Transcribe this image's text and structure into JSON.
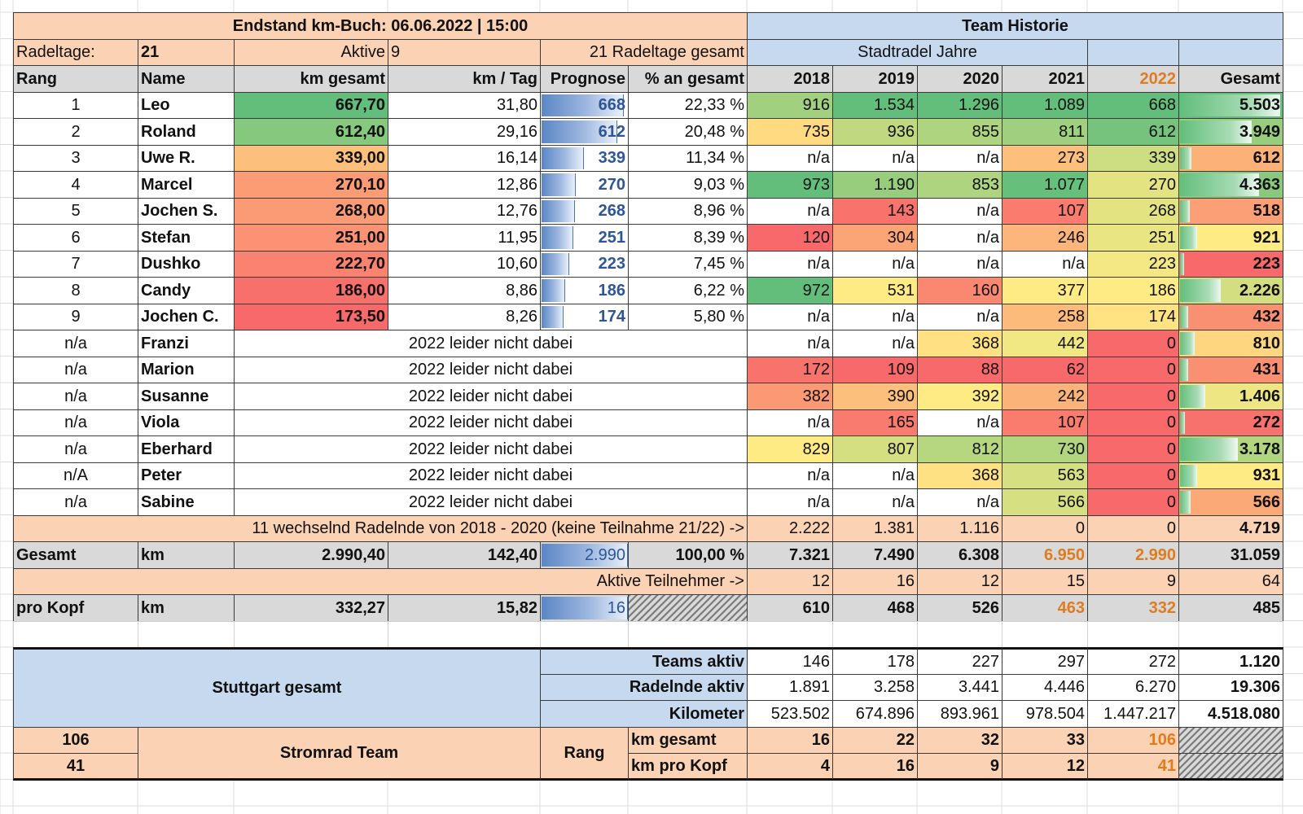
{
  "header": {
    "title": "Endstand km-Buch: 06.06.2022 | 15:00",
    "history_title": "Team Historie",
    "radeltage_label": "Radeltage:",
    "radeltage_value": "21",
    "aktive_label": "Aktive",
    "aktive_value": "9",
    "gesamt_tage": "21 Radeltage gesamt",
    "stadtradel_jahre": "Stadtradel Jahre"
  },
  "columns": [
    "Rang",
    "Name",
    "km gesamt",
    "km / Tag",
    "Prognose",
    "% an gesamt",
    "2018",
    "2019",
    "2020",
    "2021",
    "2022",
    "Gesamt"
  ],
  "colors": {
    "peach": "#fbd3b4",
    "light_blue": "#c6d9ef",
    "grey": "#d9d9d9",
    "orange_text": "#e07b1e",
    "blue_text": "#2f5597",
    "green": "#63be7b",
    "yellow": "#ffeb84",
    "red": "#f8696b"
  },
  "active_rows": [
    {
      "rang": "1",
      "name": "Leo",
      "km": "667,70",
      "km_tag": "31,80",
      "prognose": "668",
      "prozent": "22,33 %",
      "y2018": "916",
      "y2019": "1.534",
      "y2020": "1.296",
      "y2021": "1.089",
      "y2022": "668",
      "gesamt": "5.503"
    },
    {
      "rang": "2",
      "name": "Roland",
      "km": "612,40",
      "km_tag": "29,16",
      "prognose": "612",
      "prozent": "20,48 %",
      "y2018": "735",
      "y2019": "936",
      "y2020": "855",
      "y2021": "811",
      "y2022": "612",
      "gesamt": "3.949"
    },
    {
      "rang": "3",
      "name": "Uwe R.",
      "km": "339,00",
      "km_tag": "16,14",
      "prognose": "339",
      "prozent": "11,34 %",
      "y2018": "n/a",
      "y2019": "n/a",
      "y2020": "n/a",
      "y2021": "273",
      "y2022": "339",
      "gesamt": "612"
    },
    {
      "rang": "4",
      "name": "Marcel",
      "km": "270,10",
      "km_tag": "12,86",
      "prognose": "270",
      "prozent": "9,03 %",
      "y2018": "973",
      "y2019": "1.190",
      "y2020": "853",
      "y2021": "1.077",
      "y2022": "270",
      "gesamt": "4.363"
    },
    {
      "rang": "5",
      "name": "Jochen S.",
      "km": "268,00",
      "km_tag": "12,76",
      "prognose": "268",
      "prozent": "8,96 %",
      "y2018": "n/a",
      "y2019": "143",
      "y2020": "n/a",
      "y2021": "107",
      "y2022": "268",
      "gesamt": "518"
    },
    {
      "rang": "6",
      "name": "Stefan",
      "km": "251,00",
      "km_tag": "11,95",
      "prognose": "251",
      "prozent": "8,39 %",
      "y2018": "120",
      "y2019": "304",
      "y2020": "n/a",
      "y2021": "246",
      "y2022": "251",
      "gesamt": "921"
    },
    {
      "rang": "7",
      "name": "Dushko",
      "km": "222,70",
      "km_tag": "10,60",
      "prognose": "223",
      "prozent": "7,45 %",
      "y2018": "n/a",
      "y2019": "n/a",
      "y2020": "n/a",
      "y2021": "n/a",
      "y2022": "223",
      "gesamt": "223"
    },
    {
      "rang": "8",
      "name": "Candy",
      "km": "186,00",
      "km_tag": "8,86",
      "prognose": "186",
      "prozent": "6,22 %",
      "y2018": "972",
      "y2019": "531",
      "y2020": "160",
      "y2021": "377",
      "y2022": "186",
      "gesamt": "2.226"
    },
    {
      "rang": "9",
      "name": "Jochen C.",
      "km": "173,50",
      "km_tag": "8,26",
      "prognose": "174",
      "prozent": "5,80 %",
      "y2018": "n/a",
      "y2019": "n/a",
      "y2020": "n/a",
      "y2021": "258",
      "y2022": "174",
      "gesamt": "432"
    }
  ],
  "inactive_rows": [
    {
      "rang": "n/a",
      "name": "Franzi",
      "note": "2022 leider nicht dabei",
      "y2018": "n/a",
      "y2019": "n/a",
      "y2020": "368",
      "y2021": "442",
      "y2022": "0",
      "gesamt": "810"
    },
    {
      "rang": "n/a",
      "name": "Marion",
      "note": "2022 leider nicht dabei",
      "y2018": "172",
      "y2019": "109",
      "y2020": "88",
      "y2021": "62",
      "y2022": "0",
      "gesamt": "431"
    },
    {
      "rang": "n/a",
      "name": "Susanne",
      "note": "2022 leider nicht dabei",
      "y2018": "382",
      "y2019": "390",
      "y2020": "392",
      "y2021": "242",
      "y2022": "0",
      "gesamt": "1.406"
    },
    {
      "rang": "n/a",
      "name": "Viola",
      "note": "2022 leider nicht dabei",
      "y2018": "n/a",
      "y2019": "165",
      "y2020": "n/a",
      "y2021": "107",
      "y2022": "0",
      "gesamt": "272"
    },
    {
      "rang": "n/a",
      "name": "Eberhard",
      "note": "2022 leider nicht dabei",
      "y2018": "829",
      "y2019": "807",
      "y2020": "812",
      "y2021": "730",
      "y2022": "0",
      "gesamt": "3.178"
    },
    {
      "rang": "n/A",
      "name": "Peter",
      "note": "2022 leider nicht dabei",
      "y2018": "n/a",
      "y2019": "n/a",
      "y2020": "368",
      "y2021": "563",
      "y2022": "0",
      "gesamt": "931"
    },
    {
      "rang": "n/a",
      "name": "Sabine",
      "note": "2022 leider nicht dabei",
      "y2018": "n/a",
      "y2019": "n/a",
      "y2020": "n/a",
      "y2021": "566",
      "y2022": "0",
      "gesamt": "566"
    }
  ],
  "wechselnd": {
    "label": "11 wechselnd Radelnde von 2018 - 2020 (keine Teilnahme 21/22) ->",
    "y2018": "2.222",
    "y2019": "1.381",
    "y2020": "1.116",
    "y2021": "0",
    "y2022": "0",
    "gesamt": "4.719"
  },
  "gesamt_row": {
    "label": "Gesamt",
    "unit": "km",
    "km": "2.990,40",
    "km_tag": "142,40",
    "prognose": "2.990",
    "prozent": "100,00 %",
    "y2018": "7.321",
    "y2019": "7.490",
    "y2020": "6.308",
    "y2021": "6.950",
    "y2022": "2.990",
    "gesamt": "31.059"
  },
  "aktive_row": {
    "label": "Aktive  Teilnehmer ->",
    "y2018": "12",
    "y2019": "16",
    "y2020": "12",
    "y2021": "15",
    "y2022": "9",
    "gesamt": "64"
  },
  "prokopf_row": {
    "label": "pro Kopf",
    "unit": "km",
    "km": "332,27",
    "km_tag": "15,82",
    "prognose": "16",
    "y2018": "610",
    "y2019": "468",
    "y2020": "526",
    "y2021": "463",
    "y2022": "332",
    "gesamt": "485"
  },
  "stuttgart": {
    "label": "Stuttgart gesamt",
    "rows": [
      {
        "label": "Teams aktiv",
        "y2018": "146",
        "y2019": "178",
        "y2020": "227",
        "y2021": "297",
        "y2022": "272",
        "gesamt": "1.120"
      },
      {
        "label": "Radelnde aktiv",
        "y2018": "1.891",
        "y2019": "3.258",
        "y2020": "3.441",
        "y2021": "4.446",
        "y2022": "6.270",
        "gesamt": "19.306"
      },
      {
        "label": "Kilometer",
        "y2018": "523.502",
        "y2019": "674.896",
        "y2020": "893.961",
        "y2021": "978.504",
        "y2022": "1.447.217",
        "gesamt": "4.518.080"
      }
    ]
  },
  "team": {
    "label": "Stromrad Team",
    "rang_label": "Rang",
    "rank_km_gesamt": "106",
    "rank_km_pro_kopf": "41",
    "rows": [
      {
        "label": "km gesamt",
        "y2018": "16",
        "y2019": "22",
        "y2020": "32",
        "y2021": "33",
        "y2022": "106"
      },
      {
        "label": "km pro Kopf",
        "y2018": "4",
        "y2019": "16",
        "y2020": "9",
        "y2021": "12",
        "y2022": "41"
      }
    ]
  }
}
